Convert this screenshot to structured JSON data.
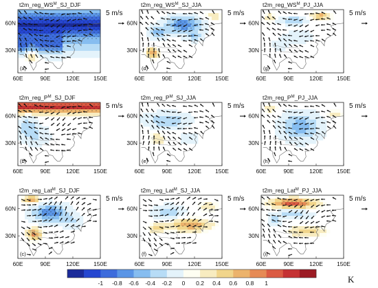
{
  "panels": [
    {
      "id": "a",
      "title": "t2m_reg_WS",
      "sup": "M",
      "suffix": "_SJ_DJF",
      "label": "(a)",
      "pattern": "cold_all"
    },
    {
      "id": "d",
      "title": "t2m_reg_WS",
      "sup": "M",
      "suffix": "_SJ_JJA",
      "label": "(d)",
      "pattern": "cold_center"
    },
    {
      "id": "g",
      "title": "t2m_reg_WS",
      "sup": "M",
      "suffix": "_PJ_JJA",
      "label": "(g)",
      "pattern": "mixed_north"
    },
    {
      "id": "b",
      "title": "t2m_reg_P",
      "sup": "M",
      "suffix": "_SJ_DJF",
      "label": "(b)",
      "pattern": "warm_north"
    },
    {
      "id": "e",
      "title": "t2m_reg_P",
      "sup": "M",
      "suffix": "_SJ_JJA",
      "label": "(e)",
      "pattern": "cold_weak"
    },
    {
      "id": "h",
      "title": "t2m_reg_P",
      "sup": "M",
      "suffix": "_PJ_JJA",
      "label": "(h)",
      "pattern": "cold_center2"
    },
    {
      "id": "c",
      "title": "t2m_reg_Lat",
      "sup": "M",
      "suffix": "_SJ_DJF",
      "label": "(c)",
      "pattern": "lat_djf"
    },
    {
      "id": "f",
      "title": "t2m_reg_Lat",
      "sup": "M",
      "suffix": "_SJ_JJA",
      "label": "(f)",
      "pattern": "lat_jja"
    },
    {
      "id": "i",
      "title": "t2m_reg_Lat",
      "sup": "M",
      "suffix": "_PJ_JJA",
      "label": "(i)",
      "pattern": "lat_pj"
    }
  ],
  "reference_vector": "5 m/s",
  "x_ticks": [
    "60E",
    "90E",
    "120E",
    "150E"
  ],
  "y_ticks": [
    "60N",
    "30N"
  ],
  "colorbar": {
    "labels": [
      "-1",
      "-0.8",
      "-0.6",
      "-0.4",
      "-0.2",
      "0",
      "0.2",
      "0.4",
      "0.6",
      "0.8",
      "1"
    ],
    "unit": "K",
    "colors": [
      "#1b2b9a",
      "#2546d0",
      "#3d6cdc",
      "#5a95e6",
      "#86bdf0",
      "#b7dcf6",
      "#e4f3fb",
      "#fefef2",
      "#f8ecc0",
      "#f1d58b",
      "#ecb36c",
      "#e68a55",
      "#db5b43",
      "#c53233",
      "#9c1b24"
    ]
  }
}
